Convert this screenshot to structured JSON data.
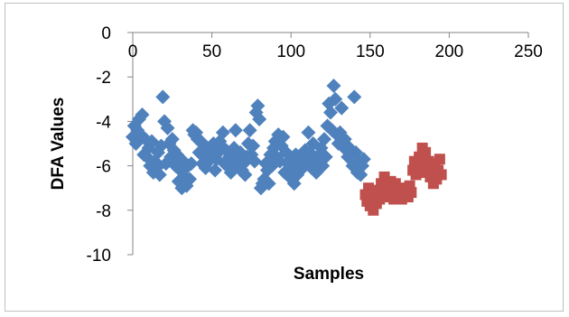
{
  "chart_data": {
    "type": "scatter",
    "title": "",
    "xlabel": "Samples",
    "ylabel": "DFA Values",
    "xlim": [
      0,
      250
    ],
    "ylim": [
      -10,
      0
    ],
    "x_ticks": [
      0,
      50,
      100,
      150,
      200,
      250
    ],
    "y_ticks": [
      0,
      -2,
      -4,
      -6,
      -8,
      -10
    ],
    "x_tick_labels": [
      "0",
      "50",
      "100",
      "150",
      "200",
      "250"
    ],
    "y_tick_labels": [
      "0",
      "-2",
      "-4",
      "-6",
      "-8",
      "-10"
    ],
    "grid": false,
    "legend": "none",
    "series": [
      {
        "color": "#4f81bd",
        "marker": "diamond",
        "points": [
          [
            0,
            -4.7
          ],
          [
            1,
            -4.2
          ],
          [
            2,
            -5.0
          ],
          [
            3,
            -4.4
          ],
          [
            4,
            -3.9
          ],
          [
            5,
            -4.6
          ],
          [
            6,
            -3.7
          ],
          [
            7,
            -5.5
          ],
          [
            8,
            -4.8
          ],
          [
            9,
            -5.6
          ],
          [
            10,
            -5.2
          ],
          [
            11,
            -6.0
          ],
          [
            12,
            -4.9
          ],
          [
            13,
            -6.3
          ],
          [
            14,
            -5.8
          ],
          [
            15,
            -6.1
          ],
          [
            16,
            -5.4
          ],
          [
            17,
            -6.4
          ],
          [
            18,
            -5.1
          ],
          [
            19,
            -2.9
          ],
          [
            20,
            -4.0
          ],
          [
            21,
            -5.9
          ],
          [
            22,
            -4.3
          ],
          [
            23,
            -5.0
          ],
          [
            24,
            -5.6
          ],
          [
            25,
            -4.8
          ],
          [
            26,
            -5.3
          ],
          [
            27,
            -6.0
          ],
          [
            28,
            -5.5
          ],
          [
            29,
            -6.7
          ],
          [
            30,
            -6.2
          ],
          [
            31,
            -7.0
          ],
          [
            32,
            -5.8
          ],
          [
            33,
            -6.5
          ],
          [
            34,
            -6.9
          ],
          [
            35,
            -6.0
          ],
          [
            36,
            -6.6
          ],
          [
            37,
            -5.9
          ],
          [
            38,
            -4.4
          ],
          [
            39,
            -4.6
          ],
          [
            40,
            -4.5
          ],
          [
            41,
            -4.8
          ],
          [
            42,
            -5.4
          ],
          [
            43,
            -4.9
          ],
          [
            44,
            -5.9
          ],
          [
            45,
            -5.5
          ],
          [
            46,
            -6.1
          ],
          [
            47,
            -5.2
          ],
          [
            48,
            -5.8
          ],
          [
            49,
            -5.3
          ],
          [
            50,
            -5.6
          ],
          [
            51,
            -5.0
          ],
          [
            52,
            -6.2
          ],
          [
            53,
            -5.7
          ],
          [
            54,
            -5.4
          ],
          [
            55,
            -4.9
          ],
          [
            56,
            -5.1
          ],
          [
            57,
            -4.5
          ],
          [
            58,
            -5.9
          ],
          [
            59,
            -5.3
          ],
          [
            60,
            -6.0
          ],
          [
            61,
            -5.6
          ],
          [
            62,
            -6.3
          ],
          [
            63,
            -5.8
          ],
          [
            64,
            -5.2
          ],
          [
            65,
            -4.4
          ],
          [
            66,
            -5.7
          ],
          [
            67,
            -6.1
          ],
          [
            68,
            -5.4
          ],
          [
            69,
            -6.2
          ],
          [
            70,
            -5.9
          ],
          [
            71,
            -6.4
          ],
          [
            72,
            -5.6
          ],
          [
            73,
            -5.0
          ],
          [
            74,
            -4.4
          ],
          [
            75,
            -5.5
          ],
          [
            76,
            -5.1
          ],
          [
            77,
            -5.8
          ],
          [
            78,
            -3.6
          ],
          [
            79,
            -3.3
          ],
          [
            80,
            -3.9
          ],
          [
            81,
            -7.0
          ],
          [
            82,
            -6.8
          ],
          [
            83,
            -6.6
          ],
          [
            84,
            -5.9
          ],
          [
            85,
            -6.2
          ],
          [
            86,
            -6.8
          ],
          [
            87,
            -5.5
          ],
          [
            88,
            -6.0
          ],
          [
            89,
            -5.2
          ],
          [
            90,
            -4.9
          ],
          [
            91,
            -5.6
          ],
          [
            92,
            -4.6
          ],
          [
            93,
            -5.8
          ],
          [
            94,
            -5.1
          ],
          [
            95,
            -4.7
          ],
          [
            96,
            -6.3
          ],
          [
            97,
            -5.4
          ],
          [
            98,
            -5.9
          ],
          [
            99,
            -6.5
          ],
          [
            100,
            -5.7
          ],
          [
            101,
            -6.1
          ],
          [
            102,
            -6.8
          ],
          [
            103,
            -5.5
          ],
          [
            104,
            -6.4
          ],
          [
            105,
            -5.9
          ],
          [
            106,
            -6.2
          ],
          [
            107,
            -5.6
          ],
          [
            108,
            -6.0
          ],
          [
            109,
            -5.3
          ],
          [
            110,
            -5.8
          ],
          [
            111,
            -4.5
          ],
          [
            112,
            -5.4
          ],
          [
            113,
            -6.1
          ],
          [
            114,
            -5.0
          ],
          [
            115,
            -5.7
          ],
          [
            116,
            -6.3
          ],
          [
            117,
            -5.9
          ],
          [
            118,
            -5.5
          ],
          [
            119,
            -5.2
          ],
          [
            120,
            -6.0
          ],
          [
            121,
            -4.8
          ],
          [
            122,
            -5.6
          ],
          [
            123,
            -4.2
          ],
          [
            124,
            -3.2
          ],
          [
            125,
            -3.6
          ],
          [
            126,
            -4.4
          ],
          [
            127,
            -2.4
          ],
          [
            128,
            -3.0
          ],
          [
            129,
            -4.6
          ],
          [
            130,
            -5.0
          ],
          [
            131,
            -4.5
          ],
          [
            132,
            -3.4
          ],
          [
            133,
            -5.1
          ],
          [
            134,
            -4.8
          ],
          [
            135,
            -5.3
          ],
          [
            136,
            -5.6
          ],
          [
            137,
            -5.2
          ],
          [
            138,
            -5.5
          ],
          [
            139,
            -6.0
          ],
          [
            140,
            -2.9
          ],
          [
            141,
            -5.4
          ],
          [
            142,
            -6.3
          ],
          [
            143,
            -5.8
          ],
          [
            144,
            -6.4
          ],
          [
            145,
            -6.0
          ],
          [
            146,
            -5.7
          ]
        ]
      },
      {
        "color": "#c0504d",
        "marker": "square",
        "points": [
          [
            147,
            -7.3
          ],
          [
            148,
            -7.6
          ],
          [
            149,
            -7.0
          ],
          [
            150,
            -7.8
          ],
          [
            151,
            -7.4
          ],
          [
            152,
            -8.0
          ],
          [
            153,
            -7.1
          ],
          [
            154,
            -7.7
          ],
          [
            155,
            -7.3
          ],
          [
            156,
            -7.5
          ],
          [
            157,
            -6.8
          ],
          [
            158,
            -7.2
          ],
          [
            159,
            -6.5
          ],
          [
            160,
            -7.4
          ],
          [
            161,
            -6.9
          ],
          [
            162,
            -7.3
          ],
          [
            163,
            -6.7
          ],
          [
            164,
            -7.0
          ],
          [
            165,
            -7.5
          ],
          [
            166,
            -6.8
          ],
          [
            167,
            -7.1
          ],
          [
            168,
            -7.4
          ],
          [
            169,
            -7.0
          ],
          [
            170,
            -7.5
          ],
          [
            171,
            -7.2
          ],
          [
            172,
            -7.3
          ],
          [
            173,
            -7.0
          ],
          [
            174,
            -7.4
          ],
          [
            175,
            -6.9
          ],
          [
            176,
            -7.2
          ],
          [
            177,
            -6.2
          ],
          [
            178,
            -5.8
          ],
          [
            179,
            -6.4
          ],
          [
            180,
            -6.0
          ],
          [
            181,
            -5.6
          ],
          [
            182,
            -6.3
          ],
          [
            183,
            -5.2
          ],
          [
            184,
            -6.0
          ],
          [
            185,
            -5.4
          ],
          [
            186,
            -6.2
          ],
          [
            187,
            -5.8
          ],
          [
            188,
            -6.5
          ],
          [
            189,
            -6.0
          ],
          [
            190,
            -6.8
          ],
          [
            191,
            -5.9
          ],
          [
            192,
            -6.6
          ],
          [
            193,
            -6.2
          ],
          [
            194,
            -5.7
          ],
          [
            195,
            -6.4
          ]
        ]
      }
    ]
  }
}
